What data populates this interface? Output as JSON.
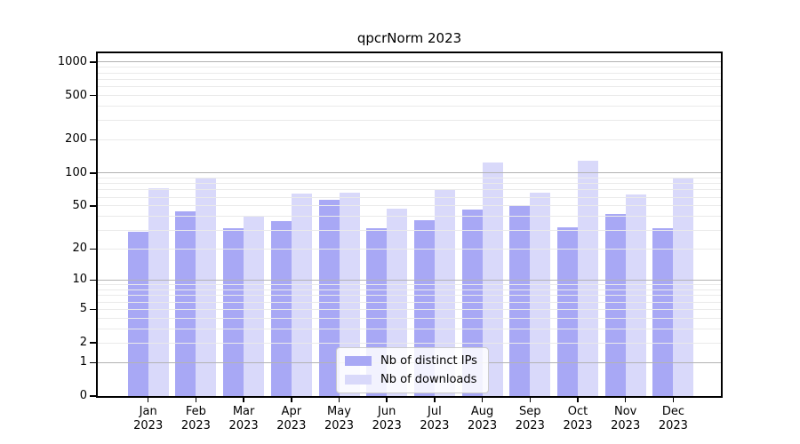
{
  "chart_data": {
    "type": "bar",
    "title": "qpcrNorm 2023",
    "categories": [
      "Jan 2023",
      "Feb 2023",
      "Mar 2023",
      "Apr 2023",
      "May 2023",
      "Jun 2023",
      "Jul 2023",
      "Aug 2023",
      "Sep 2023",
      "Oct 2023",
      "Nov 2023",
      "Dec 2023"
    ],
    "series": [
      {
        "name": "Nb of distinct IPs",
        "color": "#a8a8f5",
        "values": [
          29,
          45,
          31,
          36,
          57,
          31,
          37,
          46,
          51,
          32,
          42,
          31
        ]
      },
      {
        "name": "Nb of downloads",
        "color": "#d9d9fa",
        "values": [
          72,
          90,
          41,
          65,
          66,
          47,
          70,
          124,
          66,
          130,
          64,
          89
        ]
      }
    ],
    "y_axis": {
      "scale": "log10(1+v)",
      "ticks": [
        0,
        1,
        2,
        5,
        10,
        20,
        50,
        100,
        200,
        500,
        1000
      ],
      "max": 1200
    },
    "grid": {
      "major_at": [
        1,
        10,
        100,
        1000
      ],
      "major_color": "#b3b3b3",
      "minor_color": "#eaeaea",
      "position": "over-bars"
    },
    "legend": {
      "position": "lower-center"
    },
    "colors": {
      "axis": "#000000",
      "text": "#000000",
      "background": "#ffffff"
    }
  }
}
